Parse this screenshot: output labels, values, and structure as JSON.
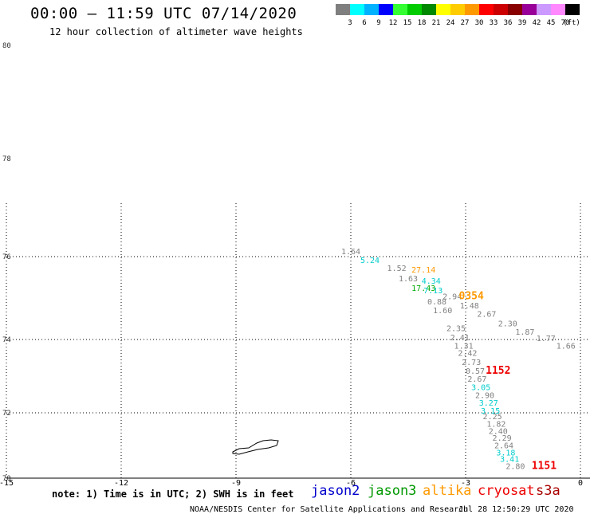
{
  "header": {
    "title": "00:00 – 11:59 UTC 07/14/2020",
    "subtitle": "12 hour collection of altimeter wave heights"
  },
  "legend": {
    "unit": "(ft)",
    "items": [
      {
        "label": "3",
        "color": "#7f7f7f"
      },
      {
        "label": "6",
        "color": "#00ffff"
      },
      {
        "label": "9",
        "color": "#00b2ff"
      },
      {
        "label": "12",
        "color": "#0000ff"
      },
      {
        "label": "15",
        "color": "#33ff33"
      },
      {
        "label": "18",
        "color": "#00cc00"
      },
      {
        "label": "21",
        "color": "#008800"
      },
      {
        "label": "24",
        "color": "#ffff00"
      },
      {
        "label": "27",
        "color": "#ffcc00"
      },
      {
        "label": "30",
        "color": "#ff9900"
      },
      {
        "label": "33",
        "color": "#ff0000"
      },
      {
        "label": "36",
        "color": "#cc0000"
      },
      {
        "label": "39",
        "color": "#880000"
      },
      {
        "label": "42",
        "color": "#990099"
      },
      {
        "label": "45",
        "color": "#cc99ff"
      },
      {
        "label": "70",
        "color": "#ff88ff"
      },
      {
        "label": "",
        "color": "#000000"
      }
    ]
  },
  "axes": {
    "lat_labels": [
      "80",
      "78",
      "76",
      "74",
      "72",
      "70"
    ],
    "lon_labels": [
      "-15",
      "-12",
      "-9",
      "-6",
      "-3",
      "0"
    ]
  },
  "observations": [
    {
      "text": "1.64",
      "lon": -6.0,
      "lat": 76.05,
      "color": "#808080"
    },
    {
      "text": "5.24",
      "lon": -5.5,
      "lat": 75.85,
      "color": "#00cccc"
    },
    {
      "text": "1.52",
      "lon": -4.8,
      "lat": 75.65,
      "color": "#808080"
    },
    {
      "text": "27.14",
      "lon": -4.1,
      "lat": 75.62,
      "color": "#ff9900"
    },
    {
      "text": "1.63",
      "lon": -4.5,
      "lat": 75.4,
      "color": "#808080"
    },
    {
      "text": "4.34",
      "lon": -3.9,
      "lat": 75.35,
      "color": "#00cccc"
    },
    {
      "text": "17.43",
      "lon": -4.1,
      "lat": 75.17,
      "color": "#00aa00"
    },
    {
      "text": "7.13",
      "lon": -3.85,
      "lat": 75.12,
      "color": "#00cccc"
    },
    {
      "text": "2.94",
      "lon": -3.35,
      "lat": 74.97,
      "color": "#808080"
    },
    {
      "text": "0354",
      "lon": -2.85,
      "lat": 74.97,
      "color": "#ff9900",
      "big": true
    },
    {
      "text": "0.88",
      "lon": -3.75,
      "lat": 74.85,
      "color": "#808080"
    },
    {
      "text": "1.48",
      "lon": -2.9,
      "lat": 74.75,
      "color": "#808080"
    },
    {
      "text": "1.60",
      "lon": -3.6,
      "lat": 74.63,
      "color": "#808080"
    },
    {
      "text": "2.67",
      "lon": -2.45,
      "lat": 74.55,
      "color": "#808080"
    },
    {
      "text": "2.30",
      "lon": -1.9,
      "lat": 74.32,
      "color": "#808080"
    },
    {
      "text": "2.35",
      "lon": -3.25,
      "lat": 74.2,
      "color": "#808080"
    },
    {
      "text": "1.87",
      "lon": -1.45,
      "lat": 74.12,
      "color": "#808080"
    },
    {
      "text": "2.41",
      "lon": -3.15,
      "lat": 73.98,
      "color": "#808080"
    },
    {
      "text": "1.77",
      "lon": -0.9,
      "lat": 73.96,
      "color": "#808080"
    },
    {
      "text": "1.31",
      "lon": -3.05,
      "lat": 73.75,
      "color": "#808080"
    },
    {
      "text": "1.66",
      "lon": -0.38,
      "lat": 73.75,
      "color": "#808080"
    },
    {
      "text": "2.42",
      "lon": -2.95,
      "lat": 73.55,
      "color": "#808080"
    },
    {
      "text": "2.73",
      "lon": -2.85,
      "lat": 73.3,
      "color": "#808080"
    },
    {
      "text": "0.57",
      "lon": -2.75,
      "lat": 73.06,
      "color": "#808080"
    },
    {
      "text": "1152",
      "lon": -2.15,
      "lat": 73.06,
      "color": "#ee0000",
      "big": true
    },
    {
      "text": "2.67",
      "lon": -2.7,
      "lat": 72.85,
      "color": "#808080"
    },
    {
      "text": "3.05",
      "lon": -2.6,
      "lat": 72.62,
      "color": "#00cccc"
    },
    {
      "text": "2.90",
      "lon": -2.5,
      "lat": 72.4,
      "color": "#808080"
    },
    {
      "text": "3.27",
      "lon": -2.4,
      "lat": 72.2,
      "color": "#00cccc"
    },
    {
      "text": "3.15",
      "lon": -2.35,
      "lat": 71.97,
      "color": "#00cccc"
    },
    {
      "text": "2.25",
      "lon": -2.3,
      "lat": 71.8,
      "color": "#808080"
    },
    {
      "text": "1.82",
      "lon": -2.2,
      "lat": 71.57,
      "color": "#808080"
    },
    {
      "text": "2.40",
      "lon": -2.15,
      "lat": 71.35,
      "color": "#808080"
    },
    {
      "text": "2.29",
      "lon": -2.05,
      "lat": 71.15,
      "color": "#808080"
    },
    {
      "text": "2.64",
      "lon": -2.0,
      "lat": 70.92,
      "color": "#808080"
    },
    {
      "text": "3.18",
      "lon": -1.95,
      "lat": 70.7,
      "color": "#00cccc"
    },
    {
      "text": "3.41",
      "lon": -1.85,
      "lat": 70.5,
      "color": "#00cccc"
    },
    {
      "text": "2.80",
      "lon": -1.7,
      "lat": 70.28,
      "color": "#808080"
    },
    {
      "text": "1151",
      "lon": -0.95,
      "lat": 70.28,
      "color": "#ee0000",
      "big": true
    }
  ],
  "footer": {
    "note": "note: 1) Time is in UTC; 2) SWH is in feet",
    "satellites": [
      {
        "name": "jason2",
        "color": "#0000cc"
      },
      {
        "name": "jason3",
        "color": "#009900"
      },
      {
        "name": "altika",
        "color": "#ff9900"
      },
      {
        "name": "cryosat",
        "color": "#ee0000"
      },
      {
        "name": "s3a",
        "color": "#aa0000"
      }
    ],
    "credit": "NOAA/NESDIS Center for Satellite Applications and Research",
    "timestamp": "Jul 28 12:50:29 UTC 2020"
  }
}
